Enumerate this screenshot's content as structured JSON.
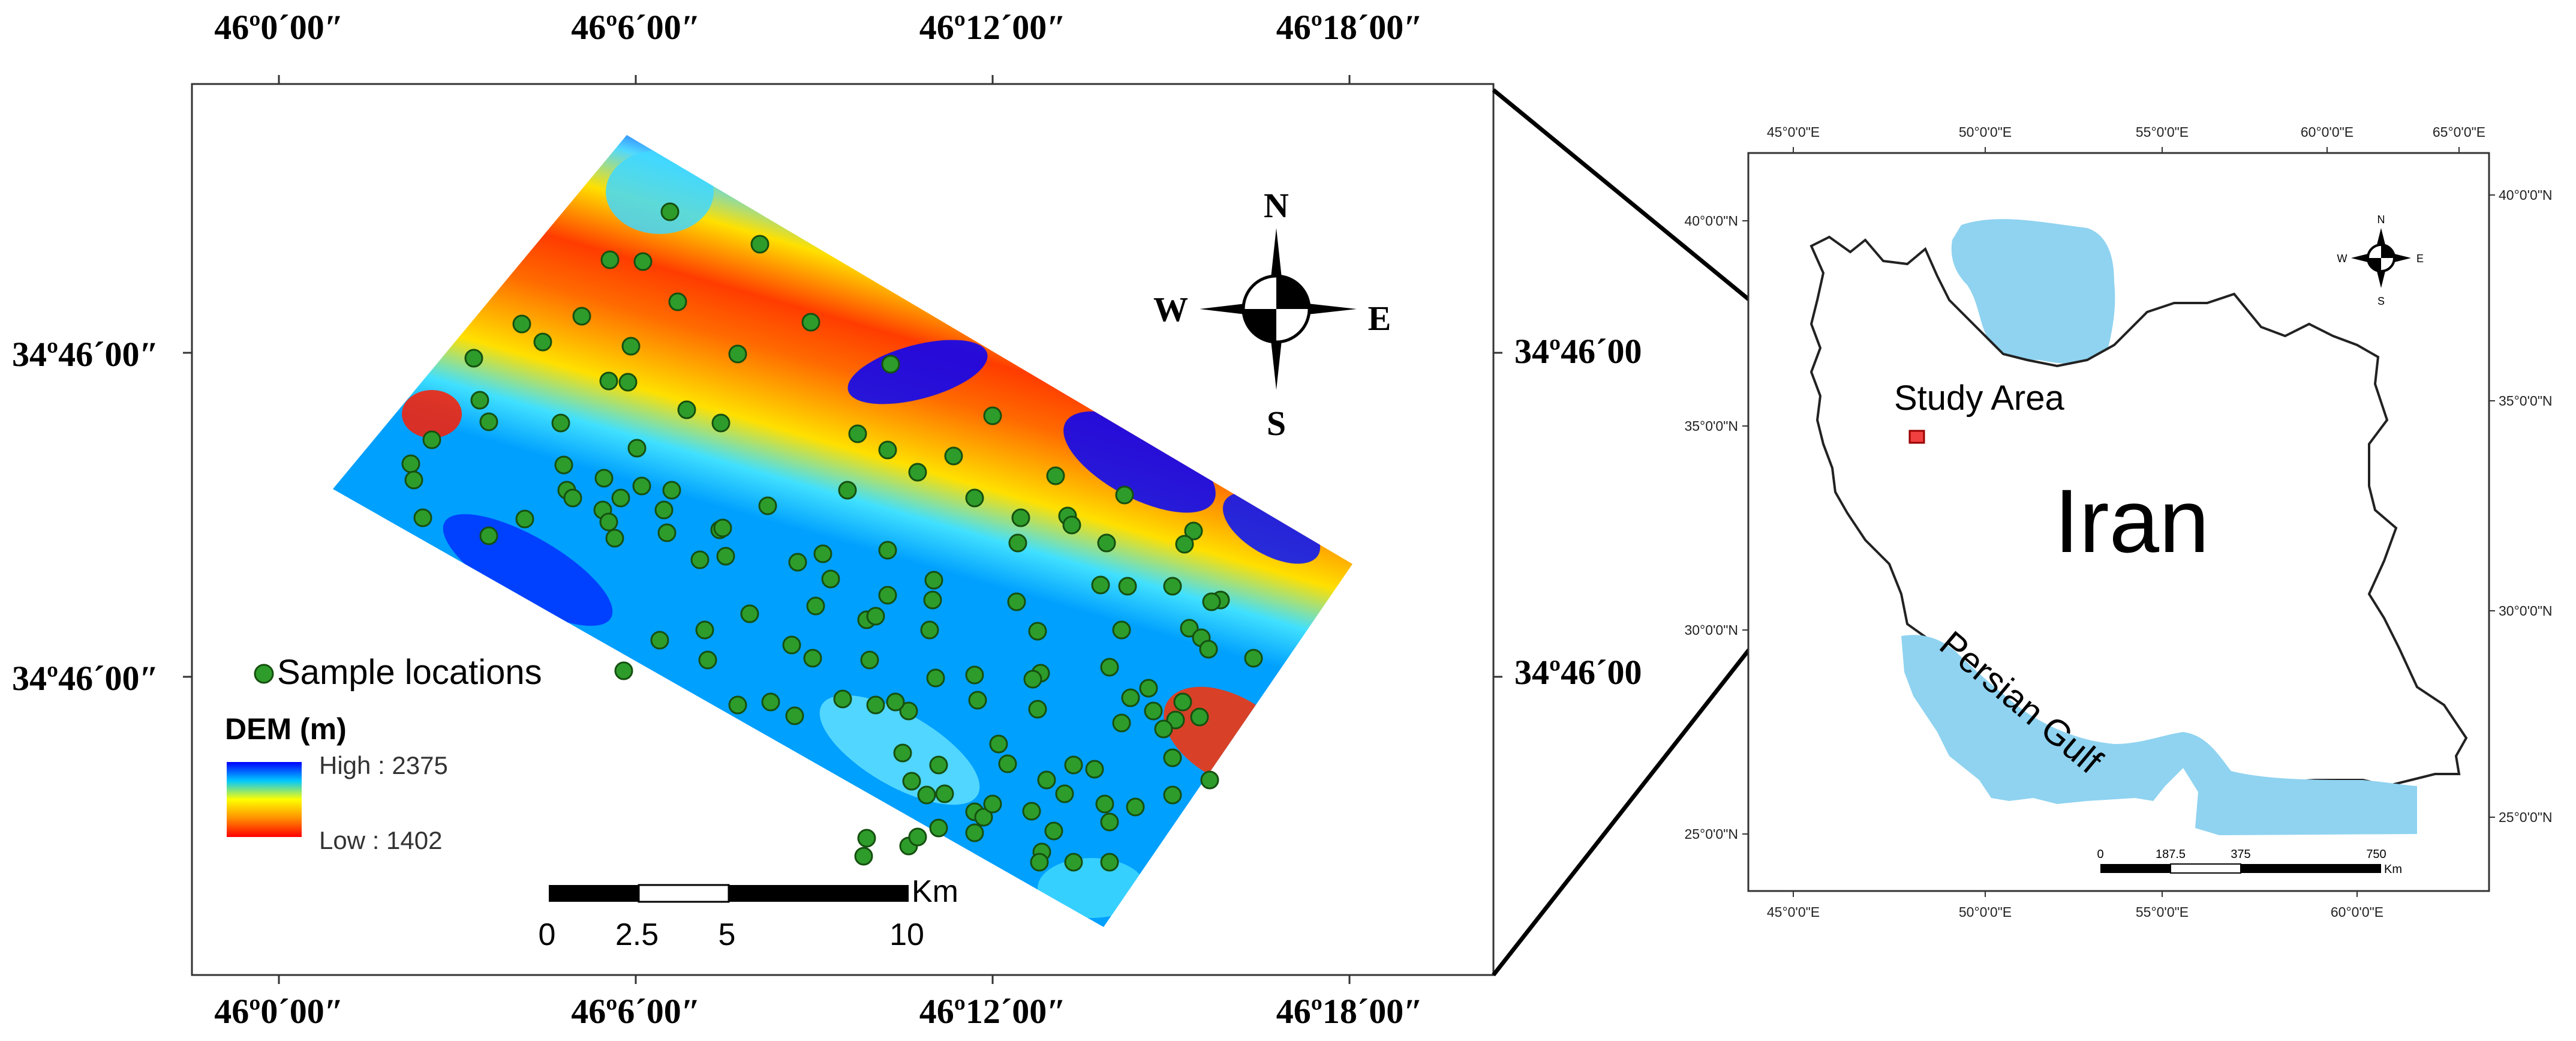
{
  "left_map": {
    "top_lon_labels": [
      "46º0´00″",
      "46º6´00″",
      "46º12´00″",
      "46º18´00″"
    ],
    "bottom_lon_labels": [
      "46º0´00″",
      "46º6´00″",
      "46º12´00″",
      "46º18´00″"
    ],
    "left_lat_labels": [
      "34º46´00″",
      "34º46´00″"
    ],
    "right_lat_labels": [
      "34º46´00",
      "34º46´00"
    ],
    "north_arrow": {
      "n": "N",
      "s": "S",
      "e": "E",
      "w": "W"
    },
    "legend": {
      "samples_label": "Sample locations",
      "dem_title": "DEM (m)",
      "high_label": "High : 2375",
      "low_label": "Low : 1402",
      "high_color": "#0000ff",
      "low_color": "#ff0000"
    },
    "scale_bar": {
      "unit": "Km",
      "ticks": [
        "0",
        "2.5",
        "5",
        "10"
      ]
    }
  },
  "right_map": {
    "top_lon_labels": [
      "45°0'0\"E",
      "50°0'0\"E",
      "55°0'0\"E",
      "60°0'0\"E",
      "65°0'0\"E"
    ],
    "bottom_lon_labels": [
      "45°0'0\"E",
      "50°0'0\"E",
      "55°0'0\"E",
      "60°0'0\"E"
    ],
    "left_lat_labels": [
      "40°0'0\"N",
      "35°0'0\"N",
      "30°0'0\"N",
      "25°0'0\"N"
    ],
    "right_lat_labels": [
      "40°0'0\"N",
      "35°0'0\"N",
      "30°0'0\"N",
      "25°0'0\"N"
    ],
    "country_label": "Iran",
    "study_area_label": "Study Area",
    "gulf_label": "Persian Gulf",
    "water_color": "#8fd3f0",
    "compass": {
      "n": "N",
      "s": "S",
      "e": "E",
      "w": "W"
    },
    "scale_bar": {
      "unit": "Km",
      "ticks": [
        "0",
        "187.5",
        "375",
        "750"
      ]
    }
  }
}
